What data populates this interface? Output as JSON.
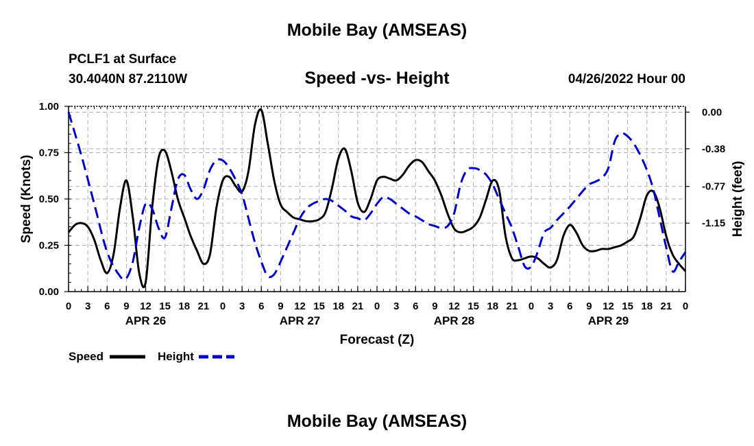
{
  "header": {
    "title": "Mobile Bay (AMSEAS)",
    "station": "PCLF1 at Surface",
    "coords": "30.4040N  87.2110W",
    "chart_title": "Speed -vs- Height",
    "datetime": "04/26/2022 Hour 00"
  },
  "footer": {
    "title": "Mobile Bay (AMSEAS)"
  },
  "colors": {
    "speed": "#000000",
    "height": "#0000cc",
    "grid": "#b0b0b0"
  },
  "chart_data": {
    "type": "line",
    "title": "Speed -vs- Height",
    "xlabel": "Forecast (Z)",
    "ylabel": "Speed (Knots)",
    "y2label": "Height (feet)",
    "x_range": [
      0,
      96
    ],
    "x_ticks": [
      0,
      3,
      6,
      9,
      12,
      15,
      18,
      21,
      24,
      27,
      30,
      33,
      36,
      39,
      42,
      45,
      48,
      51,
      54,
      57,
      60,
      63,
      66,
      69,
      72,
      75,
      78,
      81,
      84,
      87,
      90,
      93,
      96
    ],
    "x_tick_labels": [
      "0",
      "3",
      "6",
      "9",
      "12",
      "15",
      "18",
      "21",
      "0",
      "3",
      "6",
      "9",
      "12",
      "15",
      "18",
      "21",
      "0",
      "3",
      "6",
      "9",
      "12",
      "15",
      "18",
      "21",
      "0",
      "3",
      "6",
      "9",
      "12",
      "15",
      "18",
      "21",
      "0"
    ],
    "date_labels": [
      {
        "label": "APR 26",
        "hour": 12
      },
      {
        "label": "APR 27",
        "hour": 36
      },
      {
        "label": "APR 28",
        "hour": 60
      },
      {
        "label": "APR 29",
        "hour": 84
      }
    ],
    "ylim": [
      0,
      1
    ],
    "y_ticks": [
      0,
      0.25,
      0.5,
      0.75,
      1.0
    ],
    "y_tick_labels": [
      "0.00",
      "0.25",
      "0.50",
      "0.75",
      "1.00"
    ],
    "y2lim": [
      -1.86,
      0.06
    ],
    "y2_ticks": [
      0.0,
      -0.38,
      -0.77,
      -1.15
    ],
    "y2_tick_labels": [
      "0.00",
      "-0.38",
      "-0.77",
      "-1.15"
    ],
    "legend": [
      {
        "name": "Speed",
        "style": "solid"
      },
      {
        "name": "Height",
        "style": "dashed"
      }
    ],
    "series": [
      {
        "name": "Speed",
        "axis": "left",
        "x": [
          0,
          1,
          2,
          3,
          4,
          5,
          6,
          7,
          8,
          9,
          10,
          11,
          12,
          13,
          14,
          15,
          16,
          17,
          18,
          19,
          20,
          21,
          22,
          23,
          24,
          25,
          26,
          27,
          28,
          29,
          30,
          31,
          32,
          33,
          34,
          35,
          36,
          37,
          38,
          39,
          40,
          41,
          42,
          43,
          44,
          45,
          46,
          47,
          48,
          49,
          50,
          51,
          52,
          53,
          54,
          55,
          56,
          57,
          58,
          59,
          60,
          61,
          62,
          63,
          64,
          65,
          66,
          67,
          68,
          69,
          70,
          71,
          72,
          73,
          74,
          75,
          76,
          77,
          78,
          79,
          80,
          81,
          82,
          83,
          84,
          85,
          86,
          87,
          88,
          89,
          90,
          91,
          92,
          93,
          94,
          95,
          96
        ],
        "values": [
          0.32,
          0.36,
          0.37,
          0.35,
          0.28,
          0.17,
          0.1,
          0.2,
          0.45,
          0.6,
          0.4,
          0.1,
          0.05,
          0.45,
          0.72,
          0.76,
          0.65,
          0.5,
          0.4,
          0.3,
          0.22,
          0.15,
          0.2,
          0.45,
          0.6,
          0.62,
          0.57,
          0.54,
          0.65,
          0.9,
          0.98,
          0.8,
          0.6,
          0.47,
          0.43,
          0.4,
          0.39,
          0.38,
          0.38,
          0.39,
          0.43,
          0.56,
          0.72,
          0.77,
          0.65,
          0.48,
          0.43,
          0.5,
          0.6,
          0.62,
          0.61,
          0.6,
          0.63,
          0.68,
          0.71,
          0.7,
          0.65,
          0.6,
          0.52,
          0.42,
          0.34,
          0.32,
          0.33,
          0.35,
          0.4,
          0.5,
          0.6,
          0.55,
          0.3,
          0.18,
          0.17,
          0.18,
          0.19,
          0.18,
          0.15,
          0.13,
          0.17,
          0.3,
          0.36,
          0.32,
          0.25,
          0.22,
          0.22,
          0.23,
          0.23,
          0.24,
          0.25,
          0.27,
          0.3,
          0.4,
          0.52,
          0.54,
          0.45,
          0.3,
          0.2,
          0.15,
          0.11
        ]
      },
      {
        "name": "Height",
        "axis": "right",
        "x": [
          0,
          2,
          4,
          6,
          8,
          9,
          10,
          11,
          12,
          13,
          14,
          15,
          16,
          17,
          18,
          19,
          20,
          21,
          22,
          23,
          24,
          25,
          26,
          27,
          28,
          29,
          30,
          31,
          32,
          33,
          34,
          35,
          36,
          37,
          38,
          39,
          40,
          41,
          42,
          43,
          44,
          45,
          46,
          47,
          48,
          49,
          50,
          51,
          52,
          53,
          54,
          55,
          56,
          57,
          58,
          59,
          60,
          61,
          62,
          63,
          64,
          65,
          66,
          67,
          68,
          69,
          70,
          71,
          72,
          73,
          74,
          75,
          76,
          77,
          78,
          79,
          80,
          81,
          82,
          83,
          84,
          85,
          86,
          87,
          88,
          89,
          90,
          91,
          92,
          93,
          94,
          95,
          96
        ],
        "values": [
          0.0,
          -0.45,
          -0.95,
          -1.45,
          -1.7,
          -1.72,
          -1.55,
          -1.2,
          -0.95,
          -1.0,
          -1.2,
          -1.3,
          -1.0,
          -0.7,
          -0.65,
          -0.8,
          -0.9,
          -0.8,
          -0.6,
          -0.5,
          -0.5,
          -0.58,
          -0.7,
          -0.85,
          -1.1,
          -1.35,
          -1.55,
          -1.7,
          -1.68,
          -1.55,
          -1.4,
          -1.25,
          -1.1,
          -1.0,
          -0.95,
          -0.92,
          -0.9,
          -0.92,
          -0.97,
          -1.02,
          -1.08,
          -1.1,
          -1.12,
          -1.05,
          -0.95,
          -0.88,
          -0.9,
          -0.95,
          -1.0,
          -1.05,
          -1.08,
          -1.12,
          -1.16,
          -1.18,
          -1.2,
          -1.18,
          -1.05,
          -0.75,
          -0.6,
          -0.58,
          -0.6,
          -0.65,
          -0.75,
          -0.9,
          -1.05,
          -1.2,
          -1.4,
          -1.6,
          -1.6,
          -1.45,
          -1.25,
          -1.2,
          -1.12,
          -1.05,
          -0.98,
          -0.9,
          -0.82,
          -0.75,
          -0.72,
          -0.68,
          -0.58,
          -0.3,
          -0.22,
          -0.25,
          -0.33,
          -0.45,
          -0.6,
          -0.8,
          -1.1,
          -1.4,
          -1.65,
          -1.55,
          -1.45
        ]
      }
    ]
  }
}
